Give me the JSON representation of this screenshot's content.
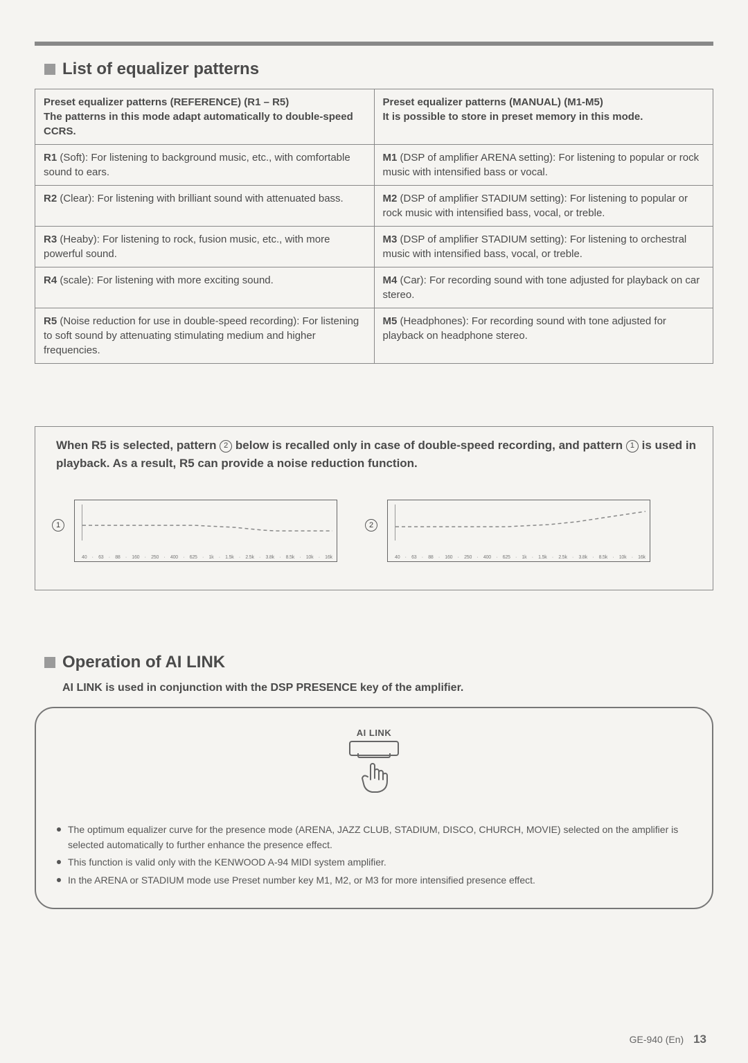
{
  "topSection": {
    "title": "List of equalizer patterns",
    "leftHeader": "Preset equalizer patterns (REFERENCE) (R1 – R5)\nThe patterns in this mode adapt automatically to double-speed CCRS.",
    "rightHeader": "Preset equalizer patterns (MANUAL) (M1-M5)\nIt is possible to store in preset memory in this mode.",
    "rows": [
      {
        "leftLabel": "R1",
        "leftName": "(Soft):",
        "leftDesc": "For listening to background music, etc., with comfortable sound to ears.",
        "rightLabel": "M1",
        "rightName": "(DSP of amplifier ARENA setting):",
        "rightDesc": "For listening to popular or rock music with intensified bass or vocal."
      },
      {
        "leftLabel": "R2",
        "leftName": "(Clear):",
        "leftDesc": "For listening with brilliant sound with attenuated bass.",
        "rightLabel": "M2",
        "rightName": "(DSP of amplifier STADIUM setting):",
        "rightDesc": "For listening to popular or rock music with intensified bass, vocal, or treble."
      },
      {
        "leftLabel": "R3",
        "leftName": "(Heaby):",
        "leftDesc": "For listening to rock, fusion music, etc., with more powerful sound.",
        "rightLabel": "M3",
        "rightName": "(DSP of amplifier STADIUM setting):",
        "rightDesc": "For listening to orchestral music with intensified bass, vocal, or treble."
      },
      {
        "leftLabel": "R4",
        "leftName": "(scale):",
        "leftDesc": "For listening with more exciting sound.",
        "rightLabel": "M4",
        "rightName": "(Car):",
        "rightDesc": "For recording sound with tone adjusted for playback on car stereo."
      },
      {
        "leftLabel": "R5",
        "leftName": "(Noise reduction for use in double-speed recording):",
        "leftDesc": "For listening to soft sound by attenuating stimulating medium and higher frequencies.",
        "rightLabel": "M5",
        "rightName": "(Headphones):",
        "rightDesc": "For recording sound with tone adjusted for playback on headphone stereo."
      }
    ]
  },
  "r5Box": {
    "textA": "When R5 is selected, pattern ",
    "textB": " below is recalled only in case of double-speed recording, and pattern ",
    "textC": " is used in playback. As a result, R5 can provide a noise reduction function.",
    "freqTicks": [
      "40",
      "·",
      "63",
      "·",
      "88",
      "·",
      "160",
      "·",
      "250",
      "·",
      "400",
      "·",
      "625",
      "·",
      "1k",
      "·",
      "1.5k",
      "·",
      "2.5k",
      "·",
      "3.8k",
      "·",
      "8.5k",
      "·",
      "10k",
      "·",
      "16k"
    ],
    "chart1": {
      "label": "1",
      "points": [
        [
          0,
          30
        ],
        [
          20,
          30
        ],
        [
          40,
          30
        ],
        [
          60,
          30
        ],
        [
          80,
          30
        ],
        [
          100,
          30
        ],
        [
          120,
          30
        ],
        [
          140,
          30
        ],
        [
          160,
          30
        ],
        [
          180,
          31
        ],
        [
          200,
          32
        ],
        [
          220,
          33
        ],
        [
          240,
          35
        ],
        [
          260,
          37
        ],
        [
          280,
          38
        ],
        [
          300,
          38
        ],
        [
          320,
          38
        ],
        [
          340,
          38
        ],
        [
          360,
          38
        ]
      ],
      "stroke": "#888",
      "strokeDash": "5,4"
    },
    "chart2": {
      "label": "2",
      "points": [
        [
          0,
          32
        ],
        [
          20,
          32
        ],
        [
          40,
          32
        ],
        [
          60,
          32
        ],
        [
          80,
          32
        ],
        [
          100,
          32
        ],
        [
          120,
          32
        ],
        [
          140,
          32
        ],
        [
          160,
          32
        ],
        [
          180,
          31
        ],
        [
          200,
          30
        ],
        [
          220,
          29
        ],
        [
          240,
          27
        ],
        [
          260,
          25
        ],
        [
          280,
          22
        ],
        [
          300,
          19
        ],
        [
          320,
          16
        ],
        [
          340,
          13
        ],
        [
          360,
          10
        ]
      ],
      "stroke": "#888",
      "strokeDash": "5,4"
    }
  },
  "aiSection": {
    "title": "Operation of AI LINK",
    "subtitle": "AI LINK is used in conjunction with the DSP PRESENCE key of the amplifier.",
    "buttonLabel": "AI LINK",
    "bullets": [
      "The optimum equalizer curve for the presence mode (ARENA, JAZZ CLUB, STADIUM, DISCO, CHURCH, MOVIE) selected on the amplifier is selected automatically to further enhance the presence effect.",
      "This function is valid only with the KENWOOD A-94 MIDI system amplifier.",
      "In the ARENA or STADIUM mode use Preset number key M1, M2, or M3 for more intensified presence effect."
    ]
  },
  "footer": {
    "model": "GE-940 (En)",
    "page": "13"
  },
  "colors": {
    "border": "#888888",
    "text": "#4a4a4a",
    "background": "#f5f4f1"
  }
}
